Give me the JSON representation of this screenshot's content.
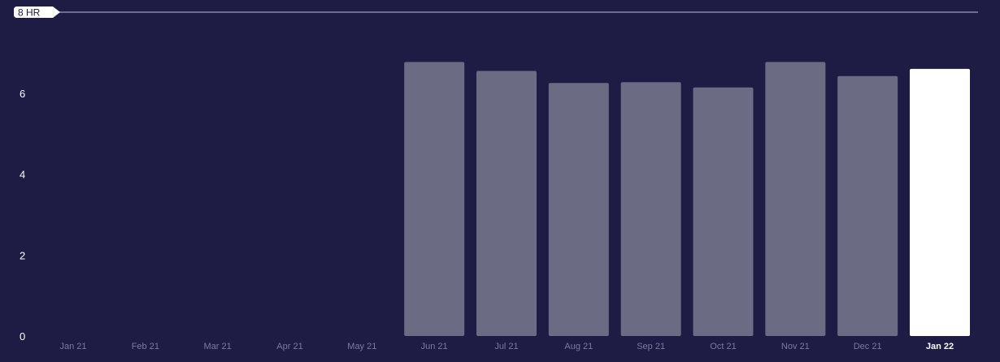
{
  "chart_data": {
    "type": "bar",
    "categories": [
      "Jan 21",
      "Feb 21",
      "Mar 21",
      "Apr 21",
      "May 21",
      "Jun 21",
      "Jul 21",
      "Aug 21",
      "Sep 21",
      "Oct 21",
      "Nov 21",
      "Dec 21",
      "Jan 22"
    ],
    "values": [
      0,
      0,
      0,
      0,
      0,
      6.77,
      6.55,
      6.25,
      6.27,
      6.14,
      6.77,
      6.42,
      6.6
    ],
    "highlighted_category": "Jan 22",
    "yticks": [
      "0",
      "2",
      "4",
      "6"
    ],
    "ytick_values": [
      0,
      2,
      4,
      6
    ],
    "ylim": [
      0,
      8
    ],
    "reference_line": {
      "label": "8 HR",
      "value": 8
    },
    "grid": false,
    "colors": {
      "background": "#1e1b45",
      "bar": "#6c6b84",
      "bar_highlight": "#ffffff",
      "tick_label": "#7c7a9c",
      "tick_label_highlight": "#ffffff",
      "ytick_label": "#ffffff",
      "reference_line": "#8a88a6",
      "badge_bg": "#ffffff",
      "badge_text": "#1e1b45"
    }
  }
}
